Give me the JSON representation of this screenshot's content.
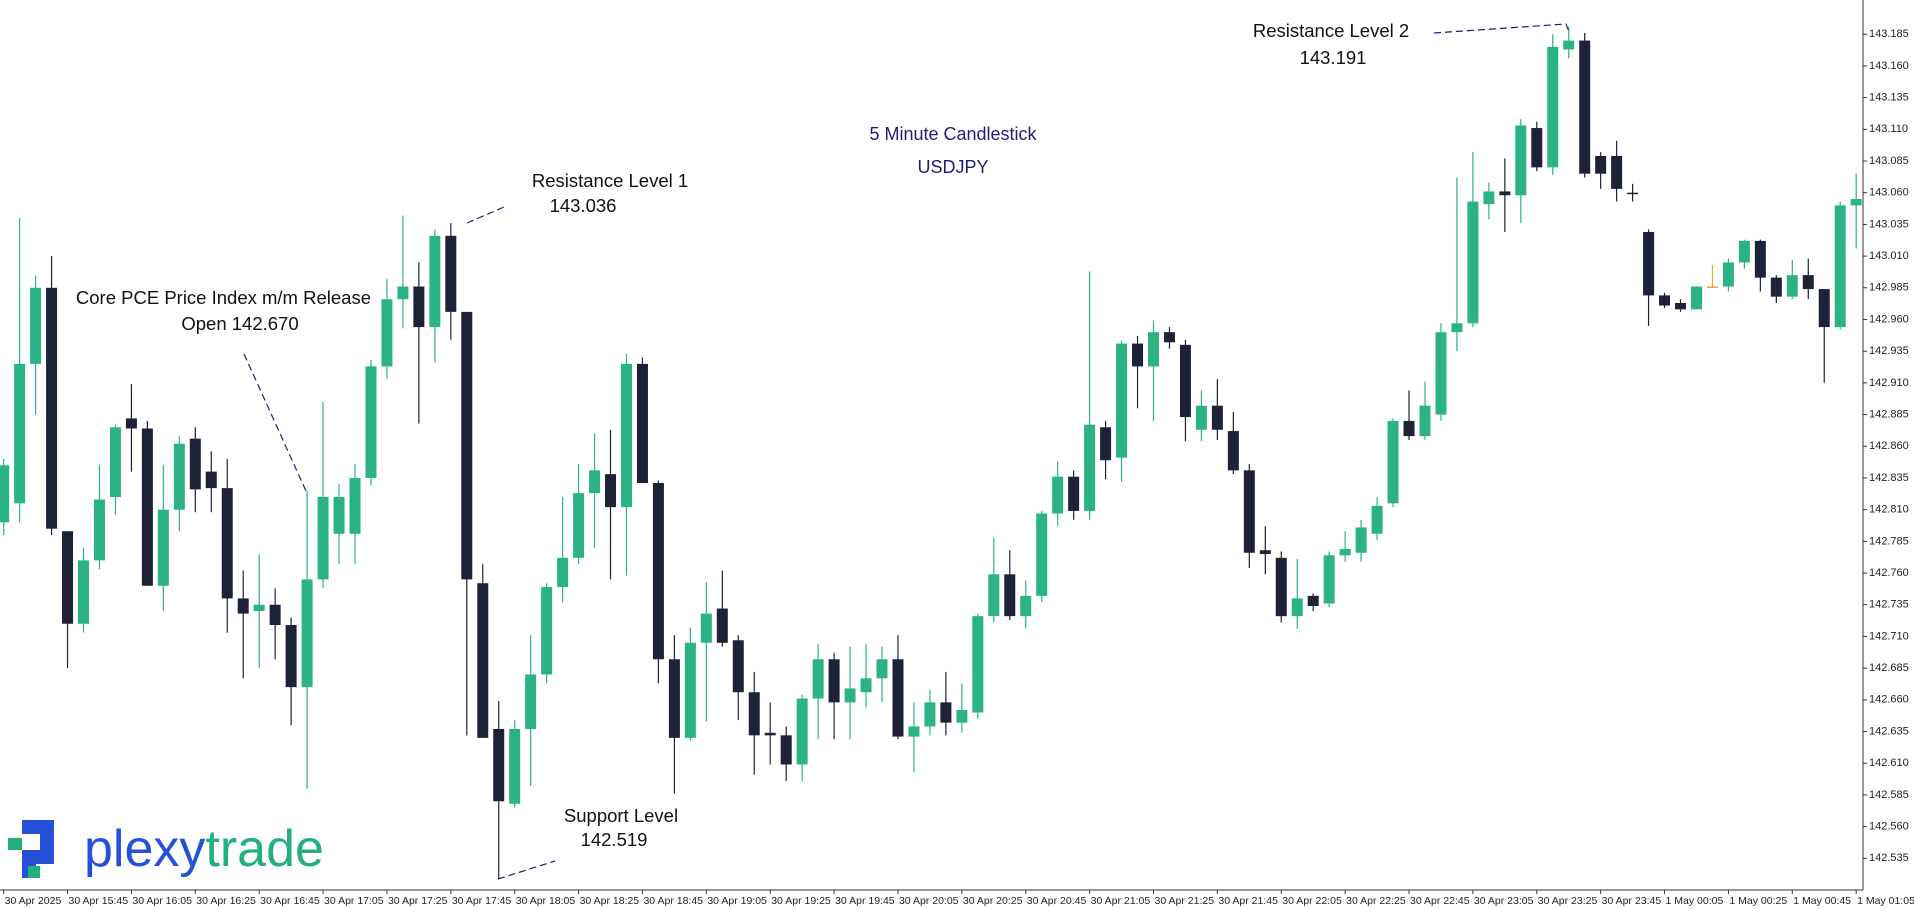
{
  "chart_data": {
    "type": "candlestick",
    "title": "5 Minute Candlestick",
    "subtitle": "USDJPY",
    "logo": [
      "plexy",
      "trade"
    ],
    "colors": {
      "up": "#2bb386",
      "down": "#1e2236",
      "doji": "#e8a33a",
      "text": "#1a1f7a"
    },
    "annotations": [
      {
        "lines": [
          "Core PCE Price Index m/m Release",
          "Open 142.670"
        ]
      },
      {
        "lines": [
          "Resistance Level 1",
          "143.036"
        ]
      },
      {
        "lines": [
          "Support Level",
          "142.519"
        ]
      },
      {
        "lines": [
          "Resistance Level 2",
          "143.191"
        ]
      }
    ],
    "categories": [
      "30 Apr 2025",
      null,
      null,
      null,
      "30 Apr 15:45",
      null,
      null,
      null,
      "30 Apr 16:05",
      null,
      null,
      null,
      "30 Apr 16:25",
      null,
      null,
      null,
      "30 Apr 16:45",
      null,
      null,
      null,
      "30 Apr 17:05",
      null,
      null,
      null,
      "30 Apr 17:25",
      null,
      null,
      null,
      "30 Apr 17:45",
      null,
      null,
      null,
      "30 Apr 18:05",
      null,
      null,
      null,
      "30 Apr 18:25",
      null,
      null,
      null,
      "30 Apr 18:45",
      null,
      null,
      null,
      "30 Apr 19:05",
      null,
      null,
      null,
      "30 Apr 19:25",
      null,
      null,
      null,
      "30 Apr 19:45",
      null,
      null,
      null,
      "30 Apr 20:05",
      null,
      null,
      null,
      "30 Apr 20:25",
      null,
      null,
      null,
      "30 Apr 20:45",
      null,
      null,
      null,
      "30 Apr 21:05",
      null,
      null,
      null,
      "30 Apr 21:25",
      null,
      null,
      null,
      "30 Apr 21:45",
      null,
      null,
      null,
      "30 Apr 22:05",
      null,
      null,
      null,
      "30 Apr 22:25",
      null,
      null,
      null,
      "30 Apr 22:45",
      null,
      null,
      null,
      "30 Apr 23:05",
      null,
      null,
      null,
      "30 Apr 23:25",
      null,
      null,
      null,
      "30 Apr 23:45",
      null,
      null,
      null,
      "1 May 00:05",
      null,
      null,
      null,
      "1 May 00:25",
      null,
      null,
      null,
      "1 May 00:45",
      null,
      null,
      null,
      "1 May 01:05"
    ],
    "ohlc": [
      [
        142.8,
        142.85,
        142.79,
        142.845
      ],
      [
        142.815,
        143.04,
        142.8,
        142.925
      ],
      [
        142.925,
        142.995,
        142.885,
        142.985
      ],
      [
        142.985,
        143.01,
        142.79,
        142.795
      ],
      [
        142.793,
        142.793,
        142.685,
        142.72
      ],
      [
        142.72,
        142.78,
        142.713,
        142.77
      ],
      [
        142.77,
        142.845,
        142.763,
        142.818
      ],
      [
        142.82,
        142.877,
        142.806,
        142.875
      ],
      [
        142.882,
        142.909,
        142.84,
        142.874
      ],
      [
        142.874,
        142.88,
        142.75,
        142.75
      ],
      [
        142.75,
        142.845,
        142.73,
        142.81
      ],
      [
        142.81,
        142.868,
        142.793,
        142.862
      ],
      [
        142.866,
        142.875,
        142.808,
        142.826
      ],
      [
        142.84,
        142.856,
        142.808,
        142.827
      ],
      [
        142.827,
        142.85,
        142.713,
        142.74
      ],
      [
        142.74,
        142.762,
        142.677,
        142.728
      ],
      [
        142.73,
        142.775,
        142.685,
        142.735
      ],
      [
        142.735,
        142.748,
        142.692,
        142.719
      ],
      [
        142.719,
        142.725,
        142.64,
        142.67
      ],
      [
        142.67,
        142.825,
        142.59,
        142.755
      ],
      [
        142.755,
        142.895,
        142.748,
        142.82
      ],
      [
        142.791,
        142.83,
        142.767,
        142.82
      ],
      [
        142.791,
        142.846,
        142.767,
        142.835
      ],
      [
        142.835,
        142.928,
        142.829,
        142.923
      ],
      [
        142.923,
        142.992,
        142.913,
        142.976
      ],
      [
        142.976,
        143.042,
        142.953,
        142.986
      ],
      [
        142.986,
        143.005,
        142.878,
        142.954
      ],
      [
        142.954,
        143.031,
        142.926,
        143.026
      ],
      [
        143.026,
        143.036,
        142.944,
        142.966
      ],
      [
        142.966,
        142.966,
        142.632,
        142.755
      ],
      [
        142.752,
        142.767,
        142.63,
        142.63
      ],
      [
        142.637,
        142.659,
        142.519,
        142.58
      ],
      [
        142.578,
        142.644,
        142.575,
        142.637
      ],
      [
        142.637,
        142.711,
        142.592,
        142.68
      ],
      [
        142.68,
        142.752,
        142.673,
        142.749
      ],
      [
        142.749,
        142.82,
        142.737,
        142.772
      ],
      [
        142.772,
        142.846,
        142.767,
        142.823
      ],
      [
        142.823,
        142.87,
        142.78,
        142.841
      ],
      [
        142.838,
        142.873,
        142.755,
        142.812
      ],
      [
        142.812,
        142.933,
        142.758,
        142.925
      ],
      [
        142.925,
        142.93,
        142.831,
        142.831
      ],
      [
        142.831,
        142.833,
        142.673,
        142.692
      ],
      [
        142.692,
        142.711,
        142.586,
        142.63
      ],
      [
        142.63,
        142.717,
        142.628,
        142.705
      ],
      [
        142.705,
        142.753,
        142.643,
        142.728
      ],
      [
        142.732,
        142.762,
        142.702,
        142.705
      ],
      [
        142.707,
        142.711,
        142.644,
        142.666
      ],
      [
        142.666,
        142.682,
        142.601,
        142.632
      ],
      [
        142.634,
        142.658,
        142.609,
        142.632
      ],
      [
        142.632,
        142.639,
        142.596,
        142.609
      ],
      [
        142.609,
        142.664,
        142.596,
        142.661
      ],
      [
        142.661,
        142.704,
        142.629,
        142.692
      ],
      [
        142.692,
        142.697,
        142.629,
        142.658
      ],
      [
        142.658,
        142.702,
        142.629,
        142.669
      ],
      [
        142.666,
        142.704,
        142.654,
        142.677
      ],
      [
        142.677,
        142.702,
        142.658,
        142.692
      ],
      [
        142.692,
        142.711,
        142.629,
        142.631
      ],
      [
        142.631,
        142.658,
        142.603,
        142.639
      ],
      [
        142.639,
        142.668,
        142.632,
        142.658
      ],
      [
        142.658,
        142.682,
        142.632,
        142.642
      ],
      [
        142.642,
        142.673,
        142.634,
        142.652
      ],
      [
        142.65,
        142.728,
        142.645,
        142.726
      ],
      [
        142.726,
        142.788,
        142.721,
        142.759
      ],
      [
        142.759,
        142.778,
        142.723,
        142.726
      ],
      [
        142.726,
        142.754,
        142.716,
        142.742
      ],
      [
        142.742,
        142.809,
        142.737,
        142.807
      ],
      [
        142.807,
        142.848,
        142.797,
        142.836
      ],
      [
        142.836,
        142.841,
        142.802,
        142.809
      ],
      [
        142.809,
        142.998,
        142.802,
        142.877
      ],
      [
        142.875,
        142.88,
        142.834,
        142.849
      ],
      [
        142.851,
        142.943,
        142.832,
        142.941
      ],
      [
        142.941,
        142.947,
        142.89,
        142.923
      ],
      [
        142.923,
        142.959,
        142.88,
        142.95
      ],
      [
        142.95,
        142.954,
        142.937,
        142.942
      ],
      [
        142.94,
        142.944,
        142.864,
        142.883
      ],
      [
        142.873,
        142.904,
        142.864,
        142.892
      ],
      [
        142.892,
        142.913,
        142.865,
        142.873
      ],
      [
        142.872,
        142.887,
        142.838,
        142.841
      ],
      [
        142.841,
        142.846,
        142.764,
        142.776
      ],
      [
        142.778,
        142.797,
        142.759,
        142.775
      ],
      [
        142.772,
        142.777,
        142.721,
        142.726
      ],
      [
        142.726,
        142.771,
        142.716,
        142.74
      ],
      [
        142.742,
        142.744,
        142.73,
        142.734
      ],
      [
        142.736,
        142.777,
        142.733,
        142.774
      ],
      [
        142.774,
        142.793,
        142.769,
        142.779
      ],
      [
        142.776,
        142.802,
        142.769,
        142.796
      ],
      [
        142.791,
        142.82,
        142.786,
        142.813
      ],
      [
        142.815,
        142.882,
        142.812,
        142.88
      ],
      [
        142.88,
        142.904,
        142.865,
        142.868
      ],
      [
        142.868,
        142.911,
        142.865,
        142.892
      ],
      [
        142.885,
        142.957,
        142.88,
        142.95
      ],
      [
        142.95,
        143.072,
        142.935,
        142.957
      ],
      [
        142.957,
        143.092,
        142.954,
        143.053
      ],
      [
        143.051,
        143.068,
        143.039,
        143.061
      ],
      [
        143.061,
        143.087,
        143.029,
        143.058
      ],
      [
        143.058,
        143.118,
        143.036,
        143.113
      ],
      [
        143.111,
        143.116,
        143.077,
        143.08
      ],
      [
        143.08,
        143.185,
        143.074,
        143.175
      ],
      [
        143.173,
        143.191,
        143.166,
        143.18
      ],
      [
        143.18,
        143.186,
        143.072,
        143.075
      ],
      [
        143.089,
        143.092,
        143.063,
        143.075
      ],
      [
        143.089,
        143.101,
        143.053,
        143.063
      ],
      [
        143.06,
        143.067,
        143.053,
        143.059
      ],
      [
        143.029,
        143.031,
        142.955,
        142.979
      ],
      [
        142.979,
        142.981,
        142.969,
        142.971
      ],
      [
        142.973,
        142.976,
        142.966,
        142.968
      ],
      [
        142.968,
        142.986,
        142.968,
        142.986
      ],
      [
        142.986,
        143.003,
        142.986,
        142.986
      ],
      [
        142.986,
        143.008,
        142.982,
        143.005
      ],
      [
        143.005,
        143.023,
        143.0,
        143.022
      ],
      [
        143.022,
        143.023,
        142.982,
        142.993
      ],
      [
        142.993,
        142.995,
        142.973,
        142.978
      ],
      [
        142.978,
        143.007,
        142.976,
        142.995
      ],
      [
        142.995,
        143.008,
        142.976,
        142.984
      ],
      [
        142.984,
        142.984,
        142.91,
        142.954
      ],
      [
        142.954,
        143.053,
        142.952,
        143.05
      ],
      [
        143.05,
        143.075,
        143.016,
        143.055
      ]
    ],
    "ylim": [
      142.51,
      143.212
    ],
    "yticks": [
      142.535,
      {
        "value": 142.56,
        "label": "142.560"
      },
      142.585,
      {
        "value": 142.61,
        "label": "142.610"
      },
      142.635,
      {
        "value": 142.66,
        "label": "142.660"
      },
      142.685,
      {
        "value": 142.71,
        "label": "142.710"
      },
      142.735,
      {
        "value": 142.76,
        "label": "142.760"
      },
      142.785,
      {
        "value": 142.81,
        "label": "142.810"
      },
      142.835,
      {
        "value": 142.86,
        "label": "142.860"
      },
      142.885,
      {
        "value": 142.91,
        "label": "142.910"
      },
      142.935,
      {
        "value": 142.96,
        "label": "142.960"
      },
      142.985,
      {
        "value": 143.01,
        "label": "143.010"
      },
      143.035,
      {
        "value": 143.06,
        "label": "143.060"
      },
      143.085,
      {
        "value": 143.11,
        "label": "143.110"
      },
      143.135,
      {
        "value": 143.16,
        "label": "143.160"
      },
      143.185
    ]
  }
}
